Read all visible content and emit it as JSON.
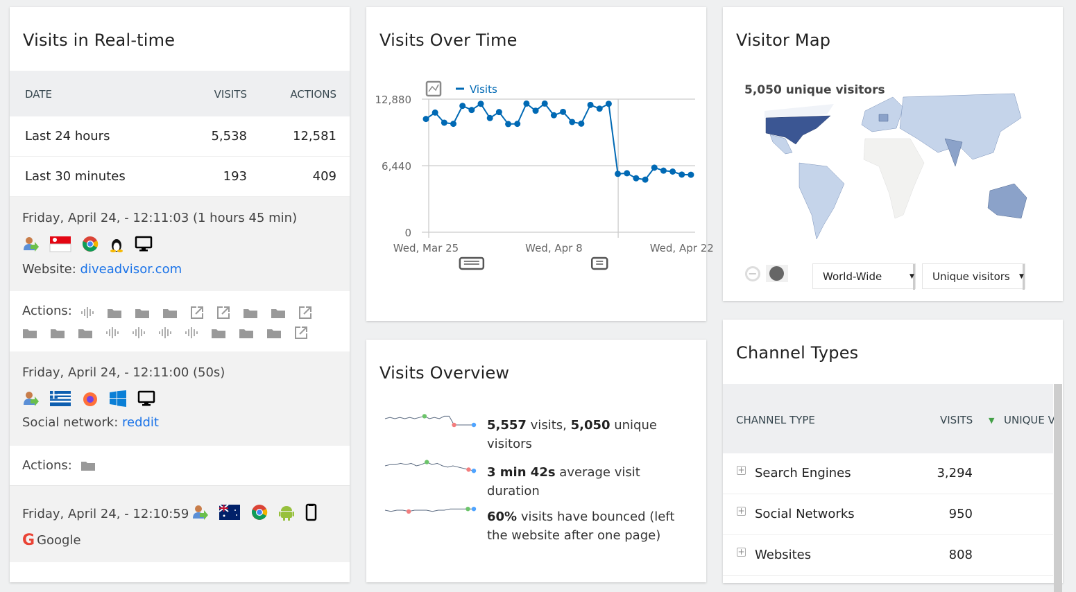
{
  "realtime": {
    "title": "Visits in Real-time",
    "columns": [
      "DATE",
      "VISITS",
      "ACTIONS"
    ],
    "rows": [
      {
        "label": "Last 24 hours",
        "visits": "5,538",
        "actions": "12,581"
      },
      {
        "label": "Last 30 minutes",
        "visits": "193",
        "actions": "409"
      }
    ],
    "visits": [
      {
        "datetime": "Friday, April 24, - 12:11:03 (1 hours 45 min)",
        "icons": [
          "returning-visitor-icon",
          "flag-singapore-icon",
          "chrome-icon",
          "linux-icon",
          "desktop-icon"
        ],
        "referrer_label": "Website: ",
        "referrer_link": "diveadvisor.com",
        "actions_label": "Actions:",
        "actions": [
          "pageview-event-icon",
          "folder-icon",
          "folder-icon",
          "folder-icon",
          "outlink-icon",
          "outlink-icon",
          "folder-icon",
          "folder-icon",
          "outlink-icon",
          "folder-icon",
          "folder-icon",
          "folder-icon",
          "pageview-event-icon",
          "pageview-event-icon",
          "pageview-event-icon",
          "pageview-event-icon",
          "folder-icon",
          "folder-icon",
          "folder-icon",
          "outlink-icon"
        ]
      },
      {
        "datetime": "Friday, April 24, - 12:11:00 (50s)",
        "icons": [
          "returning-visitor-icon",
          "flag-greece-icon",
          "firefox-icon",
          "windows-icon",
          "desktop-icon"
        ],
        "referrer_label": "Social network: ",
        "referrer_link": "reddit",
        "actions_label": "Actions:",
        "actions": [
          "folder-icon"
        ]
      },
      {
        "datetime": "Friday, April 24, - 12:10:59",
        "icons": [
          "returning-visitor-icon",
          "flag-australia-icon",
          "chrome-icon",
          "android-icon",
          "smartphone-icon"
        ],
        "referrer_text": "Google",
        "referrer_icon": "google-icon"
      }
    ]
  },
  "visits_over_time": {
    "title": "Visits Over Time"
  },
  "chart_data": {
    "type": "line",
    "series": [
      {
        "name": "Visits",
        "color": "#0069b4",
        "values": [
          10960,
          11580,
          10600,
          10490,
          12230,
          11830,
          12430,
          11050,
          11630,
          10470,
          10490,
          12450,
          11760,
          12450,
          11320,
          11650,
          10670,
          10510,
          12320,
          11960,
          12430,
          5650,
          5710,
          5220,
          5090,
          6250,
          5960,
          5870,
          5580,
          5560
        ]
      }
    ],
    "x": [
      "2020-03-25",
      "2020-03-26",
      "2020-03-27",
      "2020-03-28",
      "2020-03-29",
      "2020-03-30",
      "2020-03-31",
      "2020-04-01",
      "2020-04-02",
      "2020-04-03",
      "2020-04-04",
      "2020-04-05",
      "2020-04-06",
      "2020-04-07",
      "2020-04-08",
      "2020-04-09",
      "2020-04-10",
      "2020-04-11",
      "2020-04-12",
      "2020-04-13",
      "2020-04-14",
      "2020-04-15",
      "2020-04-16",
      "2020-04-17",
      "2020-04-18",
      "2020-04-19",
      "2020-04-20",
      "2020-04-21",
      "2020-04-22",
      "2020-04-23"
    ],
    "xtick_labels": [
      {
        "index": 0,
        "label": "Wed, Mar 25"
      },
      {
        "index": 14,
        "label": "Wed, Apr 8"
      },
      {
        "index": 28,
        "label": "Wed, Apr 22"
      }
    ],
    "yticks": [
      {
        "value": 0,
        "label": "0"
      },
      {
        "value": 6440,
        "label": "6,440"
      },
      {
        "value": 12880,
        "label": "12,880"
      }
    ],
    "ylim": [
      0,
      12880
    ],
    "grid": true,
    "legend": "top-left",
    "annotations": [
      {
        "index": 5,
        "icon": "multiple-annotations-icon"
      },
      {
        "index": 19,
        "icon": "annotation-icon"
      }
    ]
  },
  "overview": {
    "title": "Visits Overview",
    "items": [
      {
        "parts": [
          {
            "b": "5,557"
          },
          {
            "t": " visits, "
          },
          {
            "b": "5,050"
          },
          {
            "t": " unique visitors"
          }
        ],
        "spark": [
          5,
          4,
          5,
          4,
          5,
          4,
          5,
          4,
          3,
          5,
          4,
          5,
          3,
          3,
          10,
          10,
          10,
          10,
          10
        ],
        "mark_max": 8,
        "mark_min": 14
      },
      {
        "parts": [
          {
            "b": "3 min 42s"
          },
          {
            "t": " average visit duration"
          }
        ],
        "spark": [
          5,
          4,
          4,
          3,
          4,
          3,
          5,
          4,
          2,
          4,
          3,
          5,
          6,
          5,
          6,
          7,
          8,
          9
        ],
        "mark_max": 8,
        "mark_min": 16
      },
      {
        "parts": [
          {
            "b": "60%"
          },
          {
            "t": " visits have bounced (left the website after one page)"
          }
        ],
        "spark": [
          5,
          6,
          5,
          5,
          6,
          5,
          5,
          5,
          6,
          5,
          5,
          4,
          4,
          4,
          4,
          4
        ],
        "mark_max": 14,
        "mark_min": 4
      }
    ]
  },
  "map": {
    "title": "Visitor Map",
    "summary": "5,050 unique visitors",
    "region_select": "World-Wide",
    "metric_select": "Unique visitors",
    "colors": {
      "high": "#3b5693",
      "mid": "#8ba2c9",
      "low": "#c5d4ea",
      "none": "#f2f2f0"
    }
  },
  "channels": {
    "title": "Channel Types",
    "columns": [
      "CHANNEL TYPE",
      "VISITS",
      "UNIQUE V"
    ],
    "rows": [
      {
        "label": "Search Engines",
        "visits": "3,294"
      },
      {
        "label": "Social Networks",
        "visits": "950"
      },
      {
        "label": "Websites",
        "visits": "808"
      }
    ]
  }
}
